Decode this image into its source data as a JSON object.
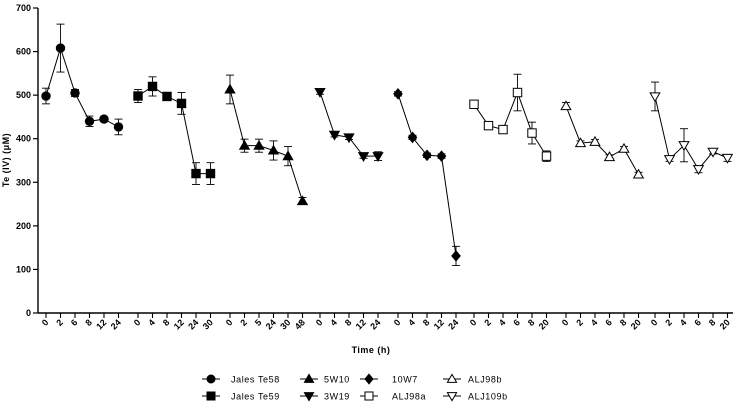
{
  "chart_data": {
    "type": "line",
    "title": "",
    "xlabel": "Time (h)",
    "ylabel": "Te (IV) (μM)",
    "ylim": [
      0,
      700
    ],
    "yticks": [
      0,
      100,
      200,
      300,
      400,
      500,
      600,
      700
    ],
    "grid": false,
    "legend_position": "bottom",
    "series": [
      {
        "name": "Jales Te58",
        "marker": "circle",
        "fill": "filled",
        "x": [
          "0",
          "2",
          "6",
          "8",
          "12",
          "24"
        ],
        "y": [
          498,
          608,
          505,
          440,
          445,
          427
        ],
        "err": [
          18,
          55,
          8,
          12,
          5,
          18
        ]
      },
      {
        "name": "Jales Te59",
        "marker": "square",
        "fill": "filled",
        "x": [
          "0",
          "4",
          "8",
          "12",
          "24",
          "30"
        ],
        "y": [
          498,
          520,
          497,
          481,
          320,
          320
        ],
        "err": [
          15,
          22,
          5,
          25,
          25,
          25
        ]
      },
      {
        "name": "5W10",
        "marker": "triangle-up",
        "fill": "filled",
        "x": [
          "0",
          "2",
          "5",
          "24",
          "30",
          "48"
        ],
        "y": [
          513,
          384,
          384,
          373,
          360,
          257
        ],
        "err": [
          33,
          15,
          15,
          22,
          22,
          8
        ]
      },
      {
        "name": "3W19",
        "marker": "triangle-down",
        "fill": "filled",
        "x": [
          "0",
          "4",
          "8",
          "12",
          "24"
        ],
        "y": [
          507,
          409,
          403,
          360,
          360
        ],
        "err": [
          5,
          5,
          5,
          5,
          10
        ]
      },
      {
        "name": "10W7",
        "marker": "diamond",
        "fill": "filled",
        "x": [
          "0",
          "4",
          "8",
          "12",
          "24"
        ],
        "y": [
          503,
          403,
          362,
          360,
          131
        ],
        "err": [
          5,
          5,
          5,
          5,
          22
        ]
      },
      {
        "name": "ALJ98a",
        "marker": "square",
        "fill": "open",
        "x": [
          "0",
          "2",
          "4",
          "6",
          "8",
          "20"
        ],
        "y": [
          479,
          430,
          421,
          506,
          413,
          360
        ],
        "err": [
          5,
          8,
          5,
          42,
          25,
          12
        ]
      },
      {
        "name": "ALJ98b",
        "marker": "triangle-up",
        "fill": "open",
        "x": [
          "0",
          "2",
          "4",
          "6",
          "8",
          "20"
        ],
        "y": [
          475,
          390,
          393,
          358,
          377,
          318
        ],
        "err": [
          8,
          5,
          5,
          5,
          5,
          5
        ]
      },
      {
        "name": "ALJ109b",
        "marker": "triangle-down",
        "fill": "open",
        "x": [
          "0",
          "2",
          "4",
          "6",
          "8",
          "20"
        ],
        "y": [
          497,
          353,
          385,
          330,
          370,
          356
        ],
        "err": [
          33,
          5,
          38,
          8,
          5,
          8
        ]
      }
    ]
  }
}
